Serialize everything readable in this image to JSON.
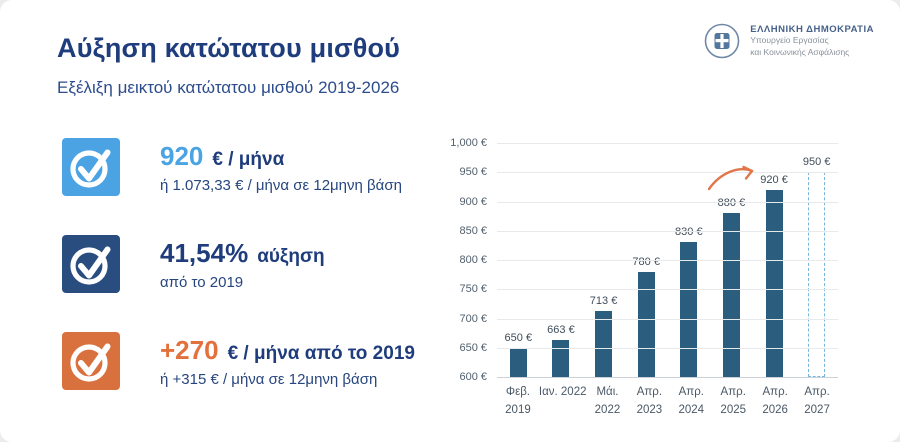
{
  "page": {
    "title": "Αύξηση κατώτατου μισθού",
    "subtitle": "Εξέλιξη μεικτού κατώτατου μισθού 2019-2026"
  },
  "logo": {
    "org": "ΕΛΛΗΝΙΚΗ ΔΗΜΟΚΡΑΤΙΑ",
    "dept_line1": "Υπουργείο Εργασίας",
    "dept_line2": "και Κοινωνικής Ασφάλισης"
  },
  "highlights": [
    {
      "value": "920",
      "value_suffix": "€ / μήνα",
      "note": "ή 1.073,33 € / μήνα σε 12μηνη βάση",
      "box_color": "#4ba3e3",
      "value_color": "#4aa4e4"
    },
    {
      "value": "41,54%",
      "value_suffix": "αύξηση",
      "note": "από το 2019",
      "box_color": "#2a4d80",
      "value_color": "#1f3d7c"
    },
    {
      "value": "+270",
      "value_suffix": "€ / μήνα από το 2019",
      "note": "ή +315 € / μήνα σε 12μηνη βάση",
      "box_color": "#d9713f",
      "value_color": "#e2713d"
    }
  ],
  "chart_data": {
    "type": "bar",
    "title": "Εξέλιξη μεικτού κατώτατου μισθού 2019-2026",
    "categories": [
      [
        "Φεβ.",
        "2019"
      ],
      [
        "Ιαν. 2022",
        ""
      ],
      [
        "Μάι.",
        "2022"
      ],
      [
        "Απρ.",
        "2023"
      ],
      [
        "Απρ.",
        "2024"
      ],
      [
        "Απρ.",
        "2025"
      ],
      [
        "Απρ.",
        "2026"
      ],
      [
        "Απρ.",
        "2027"
      ]
    ],
    "values": [
      650,
      663,
      713,
      780,
      830,
      880,
      920,
      950
    ],
    "labels": [
      "650 €",
      "663 €",
      "713 €",
      "780 €",
      "830 €",
      "880 €",
      "920 €",
      "950 €"
    ],
    "projected": [
      false,
      false,
      false,
      false,
      false,
      false,
      false,
      true
    ],
    "ylim": [
      600,
      1000
    ],
    "ytick_step": 50,
    "yticks": [
      "1,000 €",
      "950 €",
      "900 €",
      "850 €",
      "800 €",
      "750 €",
      "700 €",
      "650 €",
      "600 €"
    ],
    "grid": true,
    "bar_color": "#2b5d7e",
    "projected_border_color": "#79b6db",
    "annotation": "hand-drawn orange arrow pointing to the 920 € (Απρ. 2026) bar"
  }
}
